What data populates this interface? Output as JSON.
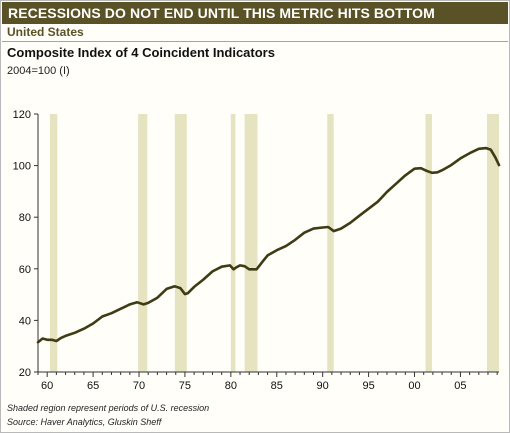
{
  "header": {
    "banner_title": "RECESSIONS DO NOT END UNTIL THIS METRIC HITS BOTTOM",
    "region": "United States",
    "chart_title": "Composite Index of 4 Coincident Indicators",
    "chart_subtitle": "2004=100  (I)"
  },
  "footnotes": {
    "note": "Shaded region represent periods of U.S. recession",
    "source": "Source: Haver Analytics, Gluskin Sheff"
  },
  "colors": {
    "banner": "#5a5227",
    "line": "#3e3b15",
    "recession_shade": "#e5e3c0"
  },
  "chart_data": {
    "type": "line",
    "title": "Composite Index of 4 Coincident Indicators",
    "subtitle": "2004=100  (I)",
    "x_tick_labels": [
      "60",
      "65",
      "70",
      "75",
      "80",
      "85",
      "90",
      "95",
      "00",
      "05"
    ],
    "x_tick_years": [
      1960,
      1965,
      1970,
      1975,
      1980,
      1985,
      1990,
      1995,
      2000,
      2005
    ],
    "xlim": [
      1959.0,
      2009.2
    ],
    "y_ticks": [
      20,
      40,
      60,
      80,
      100,
      120
    ],
    "ylim": [
      20,
      120
    ],
    "grid": false,
    "recessions": [
      [
        1960.3,
        1961.1
      ],
      [
        1969.9,
        1970.9
      ],
      [
        1973.9,
        1975.2
      ],
      [
        1980.0,
        1980.5
      ],
      [
        1981.5,
        1982.9
      ],
      [
        1990.5,
        1991.2
      ],
      [
        2001.2,
        2001.9
      ],
      [
        2007.9,
        2009.2
      ]
    ],
    "series": [
      {
        "x": [
          1959.0,
          1959.5,
          1960.0,
          1960.5,
          1961.0,
          1961.5,
          1962.0,
          1963.0,
          1964.0,
          1965.0,
          1966.0,
          1967.0,
          1968.0,
          1969.0,
          1969.8,
          1970.5,
          1971.0,
          1972.0,
          1973.0,
          1973.9,
          1974.5,
          1975.0,
          1975.3,
          1976.0,
          1977.0,
          1978.0,
          1979.0,
          1979.9,
          1980.3,
          1980.6,
          1981.0,
          1981.5,
          1982.0,
          1982.8,
          1983.5,
          1984.0,
          1985.0,
          1986.0,
          1987.0,
          1988.0,
          1989.0,
          1990.0,
          1990.6,
          1991.2,
          1992.0,
          1993.0,
          1994.0,
          1995.0,
          1996.0,
          1997.0,
          1998.0,
          1999.0,
          2000.0,
          2000.7,
          2001.3,
          2001.9,
          2002.5,
          2003.0,
          2004.0,
          2005.0,
          2006.0,
          2007.0,
          2007.8,
          2008.3,
          2008.8,
          2009.2
        ],
        "values": [
          31.5,
          33.0,
          32.5,
          32.5,
          32.0,
          33.2,
          34.0,
          35.2,
          36.8,
          38.8,
          41.5,
          42.8,
          44.5,
          46.2,
          47.0,
          46.2,
          46.8,
          48.8,
          52.2,
          53.2,
          52.5,
          50.2,
          50.5,
          53.0,
          55.8,
          59.0,
          60.8,
          61.3,
          59.8,
          60.6,
          61.3,
          61.0,
          59.8,
          59.8,
          63.0,
          65.2,
          67.2,
          68.8,
          71.2,
          74.0,
          75.6,
          76.0,
          76.2,
          74.6,
          75.6,
          77.8,
          80.6,
          83.3,
          86.0,
          89.8,
          93.0,
          96.2,
          98.8,
          99.0,
          98.0,
          97.2,
          97.4,
          98.2,
          100.2,
          102.8,
          104.8,
          106.5,
          106.8,
          106.2,
          103.2,
          100.2
        ]
      }
    ]
  }
}
